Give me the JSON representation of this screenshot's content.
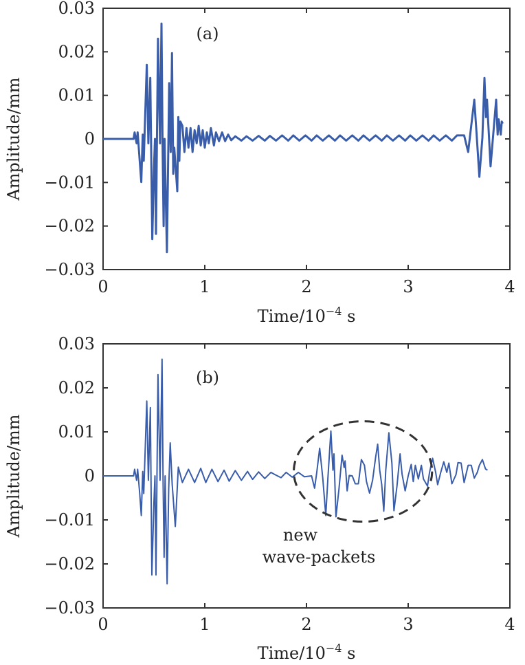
{
  "chart_data": [
    {
      "type": "line",
      "panel_label": "(a)",
      "xlabel": "Time/10",
      "xlabel_exp": "−4",
      "xlabel_unit": " s",
      "ylabel": "Amplitude/mm",
      "xlim": [
        0,
        4
      ],
      "ylim": [
        -0.03,
        0.03
      ],
      "xticks": [
        "0",
        "1",
        "2",
        "3",
        "4"
      ],
      "yticks": [
        "0.03",
        "0.02",
        "0.01",
        "0",
        "−0.01",
        "−0.02",
        "−0.03"
      ],
      "grid": false,
      "line_color": "#3a5daa",
      "series": [
        {
          "x": [
            0,
            0.3,
            0.31,
            0.33,
            0.34,
            0.36,
            0.376,
            0.39,
            0.4,
            0.43,
            0.445,
            0.464,
            0.484,
            0.5,
            0.51,
            0.52,
            0.54,
            0.56,
            0.574,
            0.585,
            0.595,
            0.605,
            0.628,
            0.64,
            0.65,
            0.665,
            0.678,
            0.69,
            0.7,
            0.73,
            0.74,
            0.75,
            0.76,
            0.78,
            0.8,
            0.82,
            0.84,
            0.86,
            0.88,
            0.9,
            0.92,
            0.94,
            0.96,
            0.98,
            1.0,
            1.02,
            1.04,
            1.06,
            1.09,
            1.11,
            1.14,
            1.17,
            1.2,
            1.23,
            1.26,
            1.3,
            1.36,
            1.41,
            1.47,
            1.53,
            1.59,
            1.64,
            1.7,
            1.76,
            1.82,
            1.87,
            1.93,
            1.99,
            2.05,
            2.1,
            2.16,
            2.22,
            2.28,
            2.33,
            2.39,
            2.45,
            2.51,
            2.56,
            2.62,
            2.68,
            2.74,
            2.79,
            2.85,
            2.91,
            2.97,
            3.02,
            3.08,
            3.14,
            3.2,
            3.25,
            3.31,
            3.37,
            3.43,
            3.48,
            3.55,
            3.59,
            3.65,
            3.67,
            3.7,
            3.73,
            3.75,
            3.765,
            3.775,
            3.81,
            3.865,
            3.88,
            3.89,
            3.91,
            3.92,
            3.93
          ],
          "y": [
            0,
            0,
            0.0015,
            -0.001,
            0.0015,
            -0.005,
            -0.0099,
            0.001,
            -0.005,
            0.017,
            -0.001,
            0.014,
            -0.023,
            -0.007,
            0,
            -0.0218,
            0.023,
            -0.001,
            0.0265,
            -0.0015,
            -0.02,
            0,
            -0.026,
            -0.005,
            0.0128,
            -0.003,
            0.0197,
            -0.008,
            -0.002,
            -0.012,
            0.005,
            -0.005,
            0.004,
            0.003,
            -0.003,
            0.0025,
            -0.002,
            0.0025,
            -0.003,
            0.002,
            -0.001,
            0.003,
            -0.0015,
            0.002,
            -0.002,
            0.0015,
            -0.001,
            0.0025,
            -0.0015,
            0.0015,
            -0.0005,
            0.0015,
            -0.0005,
            0.001,
            -0.0003,
            0.0006,
            -0.0004,
            0.0006,
            -0.0004,
            0.0007,
            -0.0004,
            0.0007,
            -0.0004,
            0.0008,
            -0.0004,
            0.0008,
            -0.0004,
            0.0008,
            -0.0004,
            0.0008,
            -0.0004,
            0.0008,
            -0.0004,
            0.0008,
            -0.0004,
            0.0008,
            -0.0004,
            0.0008,
            -0.0004,
            0.0008,
            -0.0004,
            0.0008,
            -0.0004,
            0.0008,
            -0.0004,
            0.0008,
            -0.0004,
            0.0008,
            -0.0004,
            0.0008,
            -0.0004,
            0.0008,
            -0.0004,
            0.0008,
            0.0008,
            -0.003,
            0.009,
            0.002,
            -0.0087,
            0.0003,
            0.014,
            0.005,
            0.009,
            -0.0063,
            0.009,
            0.001,
            0.0045,
            0.001,
            0.004,
            0.0035
          ]
        }
      ]
    },
    {
      "type": "line",
      "panel_label": "(b)",
      "xlabel": "Time/10",
      "xlabel_exp": "−4",
      "xlabel_unit": " s",
      "ylabel": "Amplitude/mm",
      "xlim": [
        0,
        4
      ],
      "ylim": [
        -0.03,
        0.03
      ],
      "xticks": [
        "0",
        "1",
        "2",
        "3",
        "4"
      ],
      "yticks": [
        "0.03",
        "0.02",
        "0.01",
        "0",
        "−0.01",
        "−0.02",
        "−0.03"
      ],
      "grid": false,
      "line_color": "#3a5daa",
      "annotation": {
        "line1": "new",
        "line2": "wave-packets"
      },
      "ellipse": {
        "center_x": 2.555,
        "center_y": 0.001,
        "radius_x": 0.68,
        "radius_y": 0.0114
      },
      "series": [
        {
          "x": [
            0,
            0.3,
            0.31,
            0.33,
            0.34,
            0.36,
            0.376,
            0.39,
            0.4,
            0.43,
            0.445,
            0.465,
            0.48,
            0.5,
            0.51,
            0.52,
            0.54,
            0.56,
            0.58,
            0.59,
            0.6,
            0.61,
            0.63,
            0.645,
            0.66,
            0.68,
            0.71,
            0.74,
            0.78,
            0.84,
            0.9,
            0.96,
            1.01,
            1.07,
            1.13,
            1.19,
            1.24,
            1.3,
            1.36,
            1.42,
            1.47,
            1.53,
            1.59,
            1.65,
            1.69,
            1.75,
            1.8,
            1.86,
            1.92,
            1.98,
            2.05,
            2.08,
            2.1,
            2.13,
            2.16,
            2.19,
            2.21,
            2.24,
            2.26,
            2.27,
            2.29,
            2.32,
            2.35,
            2.37,
            2.38,
            2.4,
            2.42,
            2.45,
            2.48,
            2.51,
            2.54,
            2.57,
            2.59,
            2.62,
            2.65,
            2.68,
            2.7,
            2.72,
            2.74,
            2.76,
            2.78,
            2.81,
            2.84,
            2.86,
            2.89,
            2.92,
            2.94,
            2.97,
            3.0,
            3.03,
            3.05,
            3.07,
            3.1,
            3.13,
            3.15,
            3.19,
            3.21,
            3.24,
            3.27,
            3.29,
            3.32,
            3.35,
            3.38,
            3.4,
            3.43,
            3.47,
            3.49,
            3.52,
            3.55,
            3.59,
            3.62,
            3.65,
            3.68,
            3.7,
            3.73,
            3.76,
            3.78
          ],
          "y": [
            0,
            0,
            0.0015,
            -0.001,
            0.0015,
            -0.004,
            -0.009,
            0.001,
            -0.004,
            0.017,
            -0.001,
            0.0155,
            -0.0225,
            -0.006,
            0,
            -0.0225,
            0.023,
            -0.001,
            0.0265,
            -0.001,
            -0.0185,
            0,
            -0.0245,
            -0.003,
            0.0075,
            -0.002,
            -0.0115,
            0.002,
            -0.0015,
            0.0015,
            -0.0015,
            0.0017,
            -0.0015,
            0.0015,
            -0.0013,
            0.0013,
            -0.0012,
            0.0012,
            -0.001,
            0.001,
            -0.0008,
            0.0009,
            -0.0006,
            0.0008,
            0.0003,
            -0.0004,
            0.0008,
            -0.0003,
            0.0008,
            -0.0002,
            0,
            -0.0028,
            0.0006,
            0.0063,
            -0.0005,
            -0.009,
            -0.0007,
            0.0102,
            0.0013,
            0.005,
            -0.0093,
            -0.0028,
            0.0047,
            0.0019,
            0.0034,
            -0.0034,
            0.0001,
            0,
            -0.0018,
            -0.0018,
            0.0037,
            0.0024,
            -0.0013,
            -0.0039,
            -0.001,
            0.0042,
            0.0072,
            0.0013,
            -0.002,
            -0.008,
            0.0013,
            0.0098,
            0.0029,
            -0.0079,
            -0.0023,
            0.005,
            0.0004,
            -0.0034,
            0,
            0.0026,
            -0.0013,
            0.0024,
            -0.0007,
            0.0024,
            -0.0007,
            -0.0023,
            0.0008,
            0.004,
            0.0008,
            -0.002,
            0.0008,
            0.0032,
            0.0008,
            0.0029,
            -0.0018,
            0.0003,
            0.003,
            0.0029,
            -0.0015,
            0.0024,
            0.0024,
            -0.0005,
            0.0008,
            0.0024,
            0.0037,
            0.0016,
            0.0013
          ]
        }
      ]
    }
  ]
}
